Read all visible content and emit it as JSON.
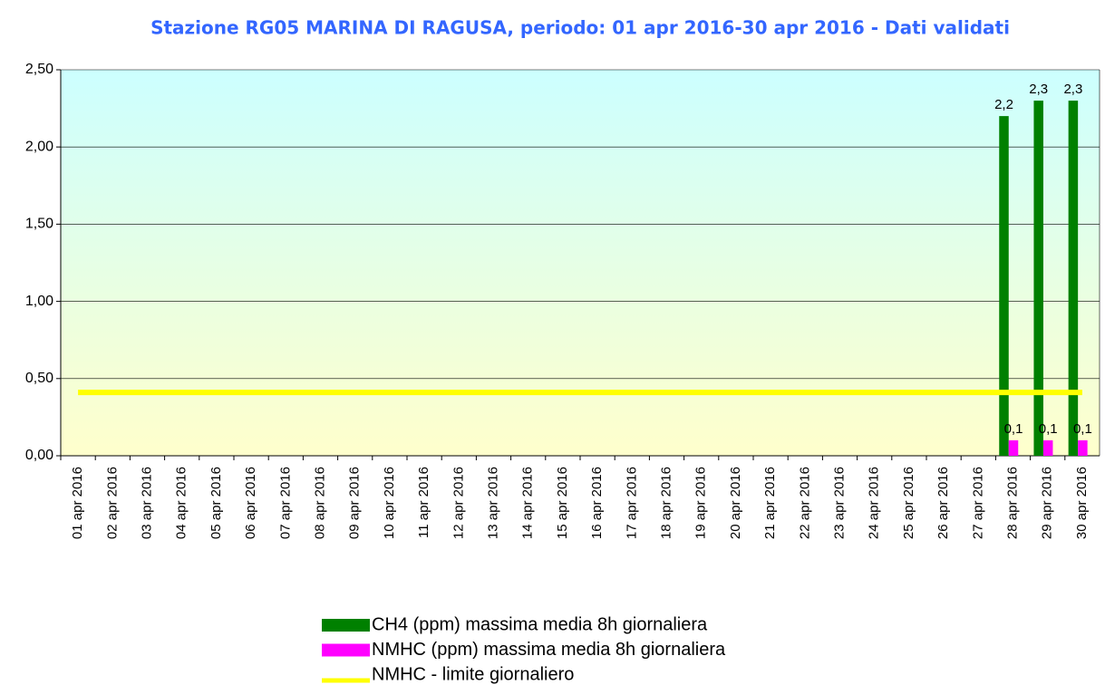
{
  "chart_data": {
    "type": "bar",
    "title": "Stazione RG05 MARINA DI RAGUSA, periodo: 01 apr 2016-30 apr 2016 - Dati validati",
    "categories": [
      "01 apr 2016",
      "02 apr 2016",
      "03 apr 2016",
      "04 apr 2016",
      "05 apr 2016",
      "06 apr 2016",
      "07 apr 2016",
      "08 apr 2016",
      "09 apr 2016",
      "10 apr 2016",
      "11 apr 2016",
      "12 apr 2016",
      "13 apr 2016",
      "14 apr 2016",
      "15 apr 2016",
      "16 apr 2016",
      "17 apr 2016",
      "18 apr 2016",
      "19 apr 2016",
      "20 apr 2016",
      "21 apr 2016",
      "22 apr 2016",
      "23 apr 2016",
      "24 apr 2016",
      "25 apr 2016",
      "26 apr 2016",
      "27 apr 2016",
      "28 apr 2016",
      "29 apr 2016",
      "30 apr 2016"
    ],
    "series": [
      {
        "name": "CH4 (ppm) massima media 8h giornaliera",
        "color": "#008000",
        "type": "bar",
        "values": [
          null,
          null,
          null,
          null,
          null,
          null,
          null,
          null,
          null,
          null,
          null,
          null,
          null,
          null,
          null,
          null,
          null,
          null,
          null,
          null,
          null,
          null,
          null,
          null,
          null,
          null,
          null,
          2.2,
          2.3,
          2.3
        ],
        "value_labels": [
          null,
          null,
          null,
          null,
          null,
          null,
          null,
          null,
          null,
          null,
          null,
          null,
          null,
          null,
          null,
          null,
          null,
          null,
          null,
          null,
          null,
          null,
          null,
          null,
          null,
          null,
          null,
          "2,2",
          "2,3",
          "2,3"
        ]
      },
      {
        "name": "NMHC (ppm) massima media 8h giornaliera",
        "color": "#ff00ff",
        "type": "bar",
        "values": [
          null,
          null,
          null,
          null,
          null,
          null,
          null,
          null,
          null,
          null,
          null,
          null,
          null,
          null,
          null,
          null,
          null,
          null,
          null,
          null,
          null,
          null,
          null,
          null,
          null,
          null,
          null,
          0.1,
          0.1,
          0.1
        ],
        "value_labels": [
          null,
          null,
          null,
          null,
          null,
          null,
          null,
          null,
          null,
          null,
          null,
          null,
          null,
          null,
          null,
          null,
          null,
          null,
          null,
          null,
          null,
          null,
          null,
          null,
          null,
          null,
          null,
          "0,1",
          "0,1",
          "0,1"
        ]
      },
      {
        "name": "NMHC - limite giornaliero",
        "color": "#ffff00",
        "type": "line",
        "values": [
          0.41,
          0.41,
          0.41,
          0.41,
          0.41,
          0.41,
          0.41,
          0.41,
          0.41,
          0.41,
          0.41,
          0.41,
          0.41,
          0.41,
          0.41,
          0.41,
          0.41,
          0.41,
          0.41,
          0.41,
          0.41,
          0.41,
          0.41,
          0.41,
          0.41,
          0.41,
          0.41,
          0.41,
          0.41,
          0.41
        ]
      }
    ],
    "ylim": [
      0,
      2.5
    ],
    "yticks": [
      {
        "value": 0,
        "label": "0,00"
      },
      {
        "value": 0.5,
        "label": "0,50"
      },
      {
        "value": 1,
        "label": "1,00"
      },
      {
        "value": 1.5,
        "label": "1,50"
      },
      {
        "value": 2,
        "label": "2,00"
      },
      {
        "value": 2.5,
        "label": "2,50"
      }
    ],
    "grid": true
  }
}
